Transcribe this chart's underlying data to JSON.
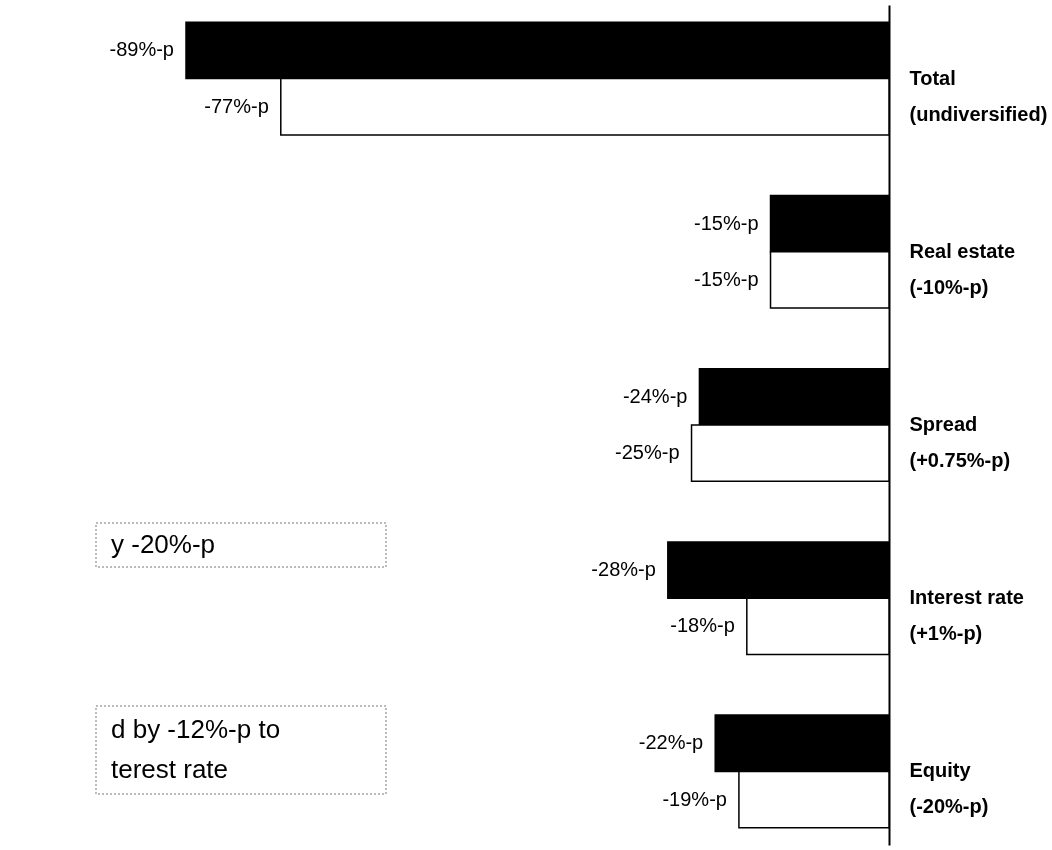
{
  "chart_data": {
    "type": "bar",
    "orientation": "horizontal",
    "categories": [
      "Total\n(undiversified)",
      "Real estate\n(-10%-p)",
      "Spread\n(+0.75%-p)",
      "Interest rate\n(+1%-p)",
      "Equity\n(-20%-p)"
    ],
    "series": [
      {
        "color": "#000000",
        "values": [
          -89,
          -15,
          -24,
          -28,
          -22
        ],
        "value_labels": [
          "-89%-p",
          "-15%-p",
          "-24%-p",
          "-28%-p",
          "-22%-p"
        ]
      },
      {
        "color": "#ffffff",
        "values": [
          -77,
          -15,
          -25,
          -18,
          -19
        ],
        "value_labels": [
          "-77%-p",
          "-15%-p",
          "-25%-p",
          "-18%-p",
          "-19%-p"
        ]
      }
    ],
    "tick_labels": "y",
    "annotations": [
      "y -20%-p",
      "d by -12%-p to\nterest rate"
    ]
  }
}
